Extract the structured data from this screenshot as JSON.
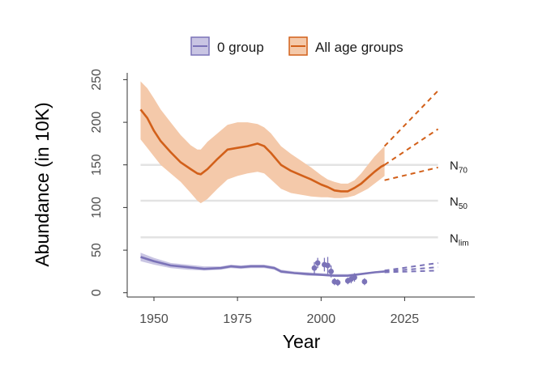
{
  "chart_data": {
    "type": "line",
    "title": "",
    "xlabel": "Year",
    "ylabel": "Abundance (in 10K)",
    "xlim": [
      1942,
      2046
    ],
    "ylim": [
      -5,
      258
    ],
    "x_ticks": [
      1950,
      1975,
      2000,
      2025
    ],
    "y_ticks": [
      0,
      50,
      100,
      150,
      200,
      250
    ],
    "grid": false,
    "legend_position": "top",
    "legend": [
      {
        "label": "0 group",
        "color": "#7b73b8",
        "fill": "#c9c5e3"
      },
      {
        "label": "All age groups",
        "color": "#d2601a",
        "fill": "#f4c9aa"
      }
    ],
    "reference_lines": [
      {
        "main": "N",
        "sub": "70",
        "value": 150
      },
      {
        "main": "N",
        "sub": "50",
        "value": 108
      },
      {
        "main": "N",
        "sub": "lim",
        "value": 65
      }
    ],
    "series": [
      {
        "name": "All age groups",
        "color": "#d2601a",
        "band_color": "#f4c9aa",
        "x": [
          1946,
          1948,
          1950,
          1952,
          1955,
          1958,
          1961,
          1963,
          1964,
          1966,
          1969,
          1972,
          1975,
          1978,
          1981,
          1983,
          1985,
          1988,
          1991,
          1994,
          1997,
          2000,
          2002,
          2004,
          2006,
          2008,
          2010,
          2012,
          2014,
          2016,
          2018,
          2019
        ],
        "y": [
          215,
          205,
          190,
          178,
          165,
          153,
          145,
          140,
          139,
          145,
          157,
          168,
          170,
          172,
          175,
          172,
          164,
          150,
          143,
          138,
          133,
          127,
          124,
          120,
          119,
          119,
          123,
          128,
          135,
          142,
          148,
          150
        ],
        "lower": [
          180,
          170,
          160,
          150,
          140,
          130,
          117,
          108,
          105,
          110,
          122,
          133,
          137,
          140,
          142,
          140,
          133,
          122,
          117,
          115,
          113,
          112,
          112,
          111,
          111,
          112,
          114,
          118,
          122,
          128,
          134,
          137
        ],
        "upper": [
          248,
          240,
          228,
          215,
          200,
          185,
          173,
          168,
          168,
          177,
          187,
          197,
          200,
          200,
          198,
          194,
          187,
          172,
          163,
          155,
          147,
          138,
          133,
          130,
          128,
          128,
          132,
          140,
          150,
          160,
          168,
          172
        ]
      },
      {
        "name": "0 group",
        "color": "#7b73b8",
        "band_color": "#c9c5e3",
        "x": [
          1946,
          1950,
          1955,
          1960,
          1965,
          1970,
          1973,
          1976,
          1979,
          1983,
          1986,
          1988,
          1992,
          1996,
          2000,
          2004,
          2008,
          2012,
          2016,
          2019
        ],
        "y": [
          42,
          37,
          32,
          30,
          28,
          29,
          31,
          30,
          31,
          31,
          29,
          25,
          23,
          22,
          21,
          20,
          20,
          22,
          24,
          25
        ],
        "lower": [
          37,
          33,
          29,
          27,
          26,
          27,
          29,
          28,
          29,
          29,
          27,
          23,
          22,
          20,
          20,
          19,
          19,
          21,
          23,
          24
        ],
        "upper": [
          47,
          41,
          35,
          33,
          31,
          31,
          33,
          32,
          33,
          33,
          31,
          27,
          25,
          24,
          23,
          22,
          22,
          23,
          25,
          26
        ]
      },
      {
        "name": "",
        "kind": "points",
        "color": "#7b73b8",
        "x": [
          1998,
          1999,
          2001,
          2002,
          2003,
          2004,
          2005,
          2008,
          2009,
          2010,
          2013
        ],
        "y": [
          29,
          35,
          33,
          32,
          25,
          13,
          12,
          14,
          16,
          18,
          13
        ],
        "err": [
          7,
          6,
          8,
          10,
          7,
          4,
          4,
          4,
          5,
          5,
          4
        ]
      },
      {
        "name": "",
        "kind": "projection",
        "color": "#d2601a",
        "lines": [
          {
            "x": [
              2019,
              2035
            ],
            "y": [
              172,
              237
            ]
          },
          {
            "x": [
              2019,
              2035
            ],
            "y": [
              150,
              192
            ]
          },
          {
            "x": [
              2019,
              2035
            ],
            "y": [
              132,
              147
            ]
          }
        ]
      },
      {
        "name": "",
        "kind": "projection",
        "color": "#7b73b8",
        "lines": [
          {
            "x": [
              2019,
              2035
            ],
            "y": [
              26,
              35
            ]
          },
          {
            "x": [
              2019,
              2035
            ],
            "y": [
              25,
              30
            ]
          },
          {
            "x": [
              2019,
              2035
            ],
            "y": [
              24,
              26
            ]
          }
        ]
      }
    ]
  }
}
